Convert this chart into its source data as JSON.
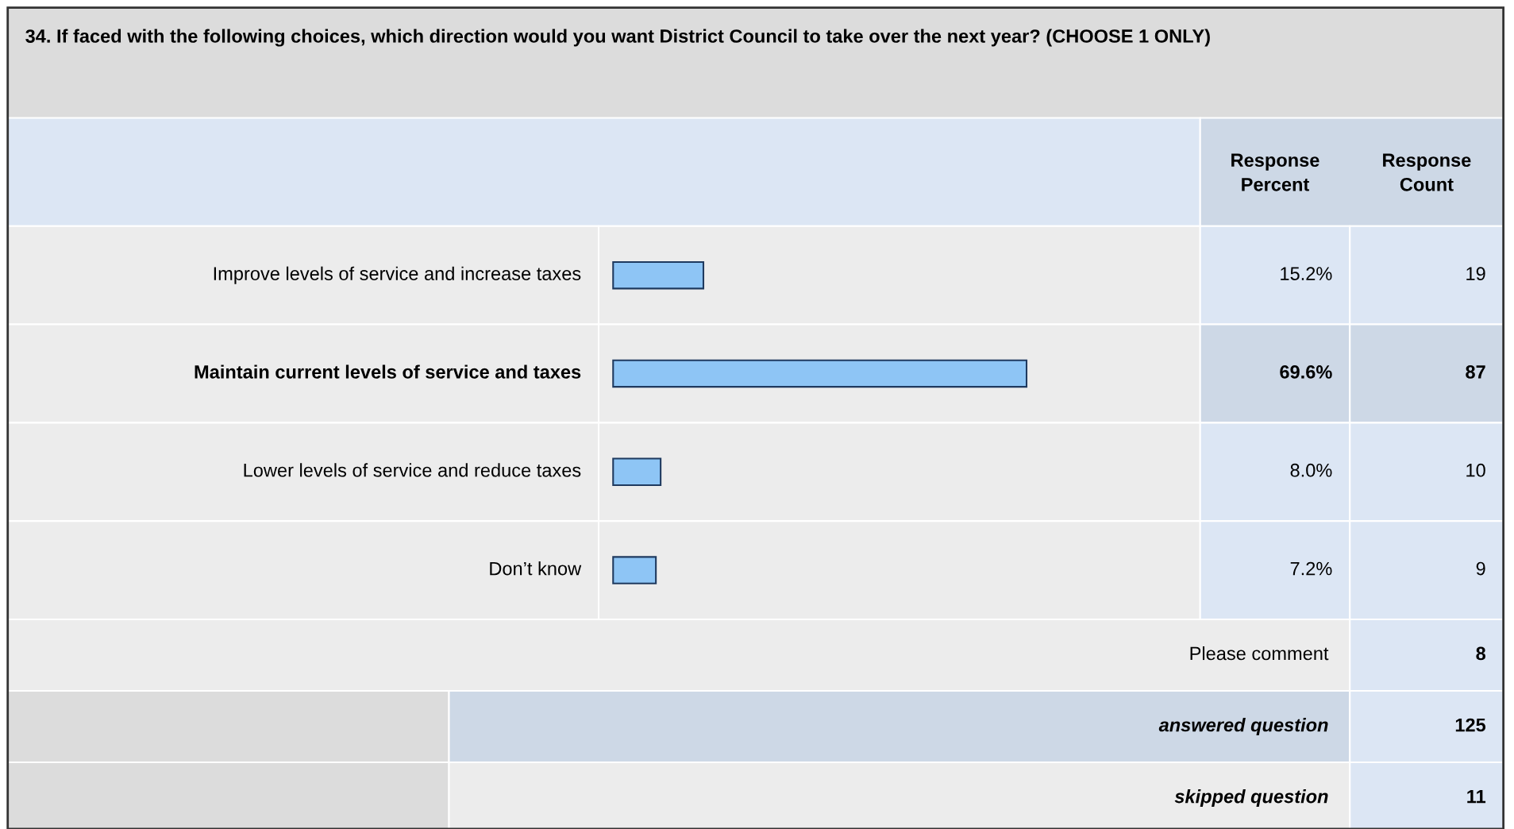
{
  "chart_data": {
    "type": "bar",
    "orientation": "horizontal",
    "data_labels": true,
    "title": "34. If faced with the following choices, which direction would you want District Council to take over the next year? (CHOOSE 1 ONLY)",
    "categories": [
      "Improve levels of service and increase taxes",
      "Maintain current levels of service and taxes",
      "Lower levels of service and reduce taxes",
      "Don’t know"
    ],
    "values": [
      15.2,
      69.6,
      8.0,
      7.2
    ],
    "value_labels": [
      "15.2%",
      "69.6%",
      "8.0%",
      "7.2%"
    ],
    "color": "#8ec5f5",
    "annotations": [
      "Response Percent",
      "Response Count",
      "19",
      "87",
      "10",
      "9",
      "Please comment",
      "8",
      "answered question",
      "125",
      "skipped question",
      "11"
    ]
  }
}
